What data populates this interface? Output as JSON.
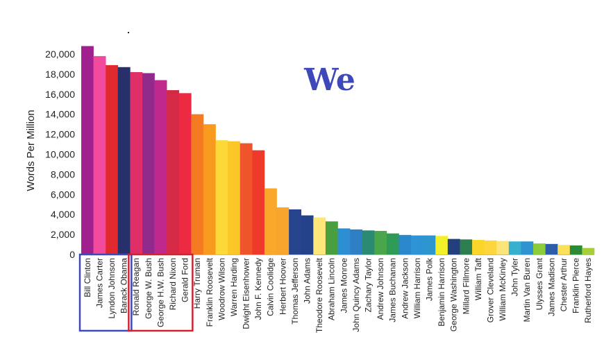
{
  "chart_data": {
    "type": "bar",
    "title": "We",
    "title_color": "#3f48b8",
    "xlabel": "",
    "ylabel": "Words Per Million",
    "ylim": [
      0,
      21000
    ],
    "yticks": [
      0,
      2000,
      4000,
      6000,
      8000,
      10000,
      12000,
      14000,
      16000,
      18000,
      20000
    ],
    "ytick_labels": [
      "0",
      "2,000",
      "4,000",
      "6,000",
      "8,000",
      "10,000",
      "12,000",
      "14,000",
      "16,000",
      "18,000",
      "20,000"
    ],
    "grid": false,
    "categories": [
      "Bill Clinton",
      "James Carter",
      "Lyndon Johnson",
      "Barack Obama",
      "Ronald Reagan",
      "George W. Bush",
      "George H.W. Bush",
      "Richard Nixon",
      "Gerald Ford",
      "Harry Truman",
      "Franklin Roosevelt",
      "Woodrow Wilson",
      "Warren Harding",
      "Dwight Eisenhower",
      "John F. Kennedy",
      "Calvin Coolidge",
      "Herbert Hoover",
      "Thomas Jefferson",
      "John Adams",
      "Theodore Roosevelt",
      "Abraham Lincoln",
      "James Monroe",
      "John Quincy Adams",
      "Zachary Taylor",
      "Andrew Johnson",
      "James Buchanan",
      "Andrew Jackson",
      "William Harrison",
      "James Polk",
      "Benjamin Harrison",
      "George Washington",
      "Millard Fillmore",
      "William Taft",
      "Grover Cleveland",
      "William McKinley",
      "John Tyler",
      "Martin Van Buren",
      "Ulysses Grant",
      "James Madison",
      "Chester Arthur",
      "Franklin Pierce",
      "Rutherford Hayes"
    ],
    "values": [
      20800,
      19800,
      18900,
      18700,
      18200,
      18100,
      17400,
      16400,
      16100,
      14000,
      13000,
      11400,
      11300,
      11100,
      10400,
      6600,
      4700,
      4500,
      3900,
      3700,
      3300,
      2600,
      2500,
      2400,
      2350,
      2100,
      1950,
      1900,
      1900,
      1850,
      1550,
      1500,
      1450,
      1400,
      1350,
      1300,
      1300,
      1100,
      1050,
      950,
      900,
      650
    ],
    "colors": [
      "#a0208f",
      "#f24a9c",
      "#e02a2f",
      "#27306a",
      "#e02f68",
      "#922a8e",
      "#c0288e",
      "#d42a46",
      "#ec2a41",
      "#f47b22",
      "#f79a1e",
      "#fcd838",
      "#fbc628",
      "#f0542b",
      "#ef3a2b",
      "#f9a82b",
      "#f7a52d",
      "#26458c",
      "#23428a",
      "#fde67a",
      "#4a9e3f",
      "#2d8fd3",
      "#2e7fc4",
      "#2a8a72",
      "#4aa64a",
      "#2f9a55",
      "#2a88cc",
      "#2d93d4",
      "#2d96cf",
      "#f3f02a",
      "#243f7e",
      "#2e7d50",
      "#fcd52a",
      "#fdd63d",
      "#fde47a",
      "#37b0cf",
      "#2f93cf",
      "#8ccb3a",
      "#2d5ca8",
      "#fde05a",
      "#2a8a3a",
      "#a6cf3a"
    ],
    "groups": [
      {
        "from": 0,
        "to": 3,
        "color": "#3a4bb9"
      },
      {
        "from": 4,
        "to": 8,
        "color": "#d0222f"
      }
    ]
  }
}
